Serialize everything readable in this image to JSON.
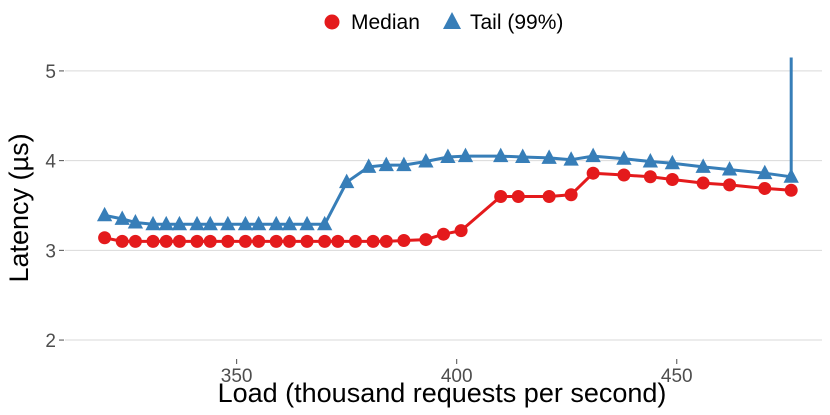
{
  "chart_data": {
    "type": "line",
    "xlabel": "Load (thousand requests per second)",
    "ylabel": "Latency (µs)",
    "xlim": [
      311,
      483
    ],
    "ylim": [
      1.8,
      5.3
    ],
    "x_ticks": [
      350,
      400,
      450
    ],
    "y_ticks": [
      2,
      3,
      4,
      5
    ],
    "grid": "horizontal major only",
    "legend_position": "top",
    "series": [
      {
        "name": "Median",
        "color": "#e41a1c",
        "marker": "circle",
        "points": [
          [
            320,
            3.14
          ],
          [
            324,
            3.1
          ],
          [
            327,
            3.1
          ],
          [
            331,
            3.1
          ],
          [
            334,
            3.1
          ],
          [
            337,
            3.1
          ],
          [
            341,
            3.1
          ],
          [
            344,
            3.1
          ],
          [
            348,
            3.1
          ],
          [
            352,
            3.1
          ],
          [
            355,
            3.1
          ],
          [
            359,
            3.1
          ],
          [
            362,
            3.1
          ],
          [
            366,
            3.1
          ],
          [
            370,
            3.1
          ],
          [
            373,
            3.1
          ],
          [
            377,
            3.1
          ],
          [
            381,
            3.1
          ],
          [
            384,
            3.1
          ],
          [
            388,
            3.11
          ],
          [
            393,
            3.12
          ],
          [
            397,
            3.18
          ],
          [
            401,
            3.22
          ],
          [
            410,
            3.6
          ],
          [
            414,
            3.6
          ],
          [
            421,
            3.6
          ],
          [
            426,
            3.62
          ],
          [
            431,
            3.86
          ],
          [
            438,
            3.84
          ],
          [
            444,
            3.82
          ],
          [
            449,
            3.79
          ],
          [
            456,
            3.75
          ],
          [
            462,
            3.73
          ],
          [
            470,
            3.69
          ],
          [
            476,
            3.67
          ]
        ]
      },
      {
        "name": "Tail (99%)",
        "color": "#377eb8",
        "marker": "triangle",
        "points": [
          [
            320,
            3.39
          ],
          [
            324,
            3.35
          ],
          [
            327,
            3.31
          ],
          [
            331,
            3.29
          ],
          [
            334,
            3.29
          ],
          [
            337,
            3.29
          ],
          [
            341,
            3.29
          ],
          [
            344,
            3.29
          ],
          [
            348,
            3.29
          ],
          [
            352,
            3.29
          ],
          [
            355,
            3.29
          ],
          [
            359,
            3.29
          ],
          [
            362,
            3.29
          ],
          [
            366,
            3.29
          ],
          [
            370,
            3.29
          ],
          [
            375,
            3.76
          ],
          [
            380,
            3.93
          ],
          [
            384,
            3.95
          ],
          [
            388,
            3.95
          ],
          [
            393,
            3.99
          ],
          [
            398,
            4.04
          ],
          [
            402,
            4.05
          ],
          [
            410,
            4.05
          ],
          [
            415,
            4.04
          ],
          [
            421,
            4.03
          ],
          [
            426,
            4.01
          ],
          [
            431,
            4.05
          ],
          [
            438,
            4.02
          ],
          [
            444,
            3.99
          ],
          [
            449,
            3.97
          ],
          [
            456,
            3.93
          ],
          [
            462,
            3.9
          ],
          [
            470,
            3.86
          ],
          [
            476,
            3.82
          ]
        ],
        "spike": {
          "x": 476,
          "y_from": 3.82,
          "y_to": 5.15
        }
      }
    ]
  }
}
